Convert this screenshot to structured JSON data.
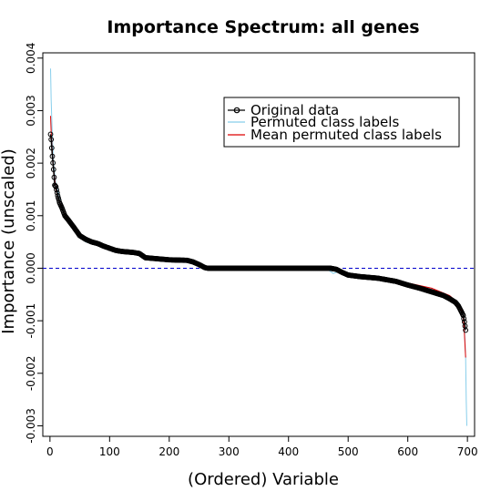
{
  "chart_data": {
    "type": "line",
    "title": "Importance Spectrum: all genes",
    "xlabel": "(Ordered) Variable",
    "ylabel": "Importance (unscaled)",
    "xlim": [
      -12,
      712
    ],
    "ylim": [
      -0.0032,
      0.0041
    ],
    "x_ticks": [
      0,
      100,
      200,
      300,
      400,
      500,
      600,
      700
    ],
    "x_tick_labels": [
      "0",
      "100",
      "200",
      "300",
      "400",
      "500",
      "600",
      "700"
    ],
    "y_ticks": [
      -0.003,
      -0.002,
      -0.001,
      0.0,
      0.001,
      0.002,
      0.003,
      0.004
    ],
    "y_tick_labels": [
      "-0.003",
      "-0.002",
      "-0.001",
      "0.000",
      "0.001",
      "0.002",
      "0.003",
      "0.004"
    ],
    "reference_line": {
      "y": 0,
      "style": "dashed",
      "color": "#0000cc"
    },
    "legend": {
      "position": "top-right",
      "entries": [
        {
          "label": "Original data",
          "color": "#000000",
          "marker": "circle"
        },
        {
          "label": "Permuted class labels",
          "color": "#87ceeb",
          "marker": ""
        },
        {
          "label": "Mean permuted class labels",
          "color": "#dd0000",
          "marker": ""
        }
      ]
    },
    "series": [
      {
        "name": "Original data",
        "color": "#000000",
        "x": [
          1,
          2,
          4,
          6,
          8,
          10,
          13,
          16,
          20,
          25,
          30,
          40,
          50,
          60,
          70,
          80,
          90,
          100,
          110,
          120,
          140,
          150,
          160,
          180,
          200,
          230,
          240,
          250,
          260,
          265,
          300,
          350,
          400,
          450,
          470,
          480,
          490,
          500,
          520,
          550,
          580,
          600,
          620,
          640,
          660,
          670,
          680,
          685,
          690,
          693,
          695,
          697
        ],
        "y": [
          0.00255,
          0.00245,
          0.00213,
          0.00188,
          0.00158,
          0.00155,
          0.00138,
          0.00125,
          0.00115,
          0.001,
          0.00093,
          0.00078,
          0.00062,
          0.00055,
          0.0005,
          0.00047,
          0.00042,
          0.00038,
          0.00034,
          0.00032,
          0.0003,
          0.00028,
          0.0002,
          0.00018,
          0.00016,
          0.00015,
          0.00012,
          7e-05,
          1e-05,
          0.0,
          0.0,
          0.0,
          0.0,
          0.0,
          0.0,
          -2e-05,
          -8e-05,
          -0.00013,
          -0.00016,
          -0.00019,
          -0.00025,
          -0.00032,
          -0.00038,
          -0.00045,
          -0.00052,
          -0.00058,
          -0.00065,
          -0.00072,
          -0.00083,
          -0.0009,
          -0.00102,
          -0.00118
        ]
      },
      {
        "name": "Permuted class labels",
        "color": "#87ceeb",
        "x": [
          1,
          2,
          4,
          6,
          8,
          10,
          15,
          20,
          25,
          30,
          40,
          50,
          60,
          80,
          100,
          120,
          150,
          160,
          200,
          240,
          250,
          260,
          265,
          300,
          400,
          450,
          465,
          475,
          490,
          500,
          550,
          600,
          640,
          670,
          685,
          690,
          693,
          695,
          697,
          698,
          699
        ],
        "y": [
          0.0038,
          0.0032,
          0.0025,
          0.002,
          0.0018,
          0.0016,
          0.0014,
          0.0012,
          0.001,
          0.00088,
          0.00072,
          0.00058,
          0.0005,
          0.00043,
          0.00036,
          0.00031,
          0.00024,
          0.00018,
          0.00016,
          0.00013,
          5e-05,
          0.0,
          0.0,
          0.0,
          0.0,
          0.0,
          -2e-05,
          -0.0001,
          -4e-05,
          -0.00015,
          -0.0002,
          -0.0003,
          -0.0004,
          -0.00055,
          -0.00065,
          -0.00075,
          -0.0009,
          -0.00115,
          -0.0017,
          -0.0025,
          -0.003
        ]
      },
      {
        "name": "Mean permuted class labels",
        "color": "#dd0000",
        "x": [
          1,
          2,
          4,
          6,
          8,
          10,
          15,
          20,
          30,
          40,
          50,
          60,
          80,
          100,
          120,
          150,
          160,
          200,
          240,
          250,
          260,
          265,
          300,
          400,
          450,
          480,
          500,
          550,
          600,
          640,
          670,
          685,
          690,
          693,
          695,
          697
        ],
        "y": [
          0.0029,
          0.0026,
          0.0022,
          0.0019,
          0.0017,
          0.0015,
          0.0013,
          0.00115,
          0.0009,
          0.00075,
          0.0006,
          0.00052,
          0.00044,
          0.00036,
          0.00031,
          0.00025,
          0.00019,
          0.00016,
          0.00013,
          6e-05,
          1e-05,
          0.0,
          0.0,
          0.0,
          0.0,
          -4e-05,
          -0.00013,
          -0.00018,
          -0.00028,
          -0.00038,
          -0.00052,
          -0.00066,
          -0.00078,
          -0.00092,
          -0.00125,
          -0.0017
        ]
      }
    ]
  }
}
